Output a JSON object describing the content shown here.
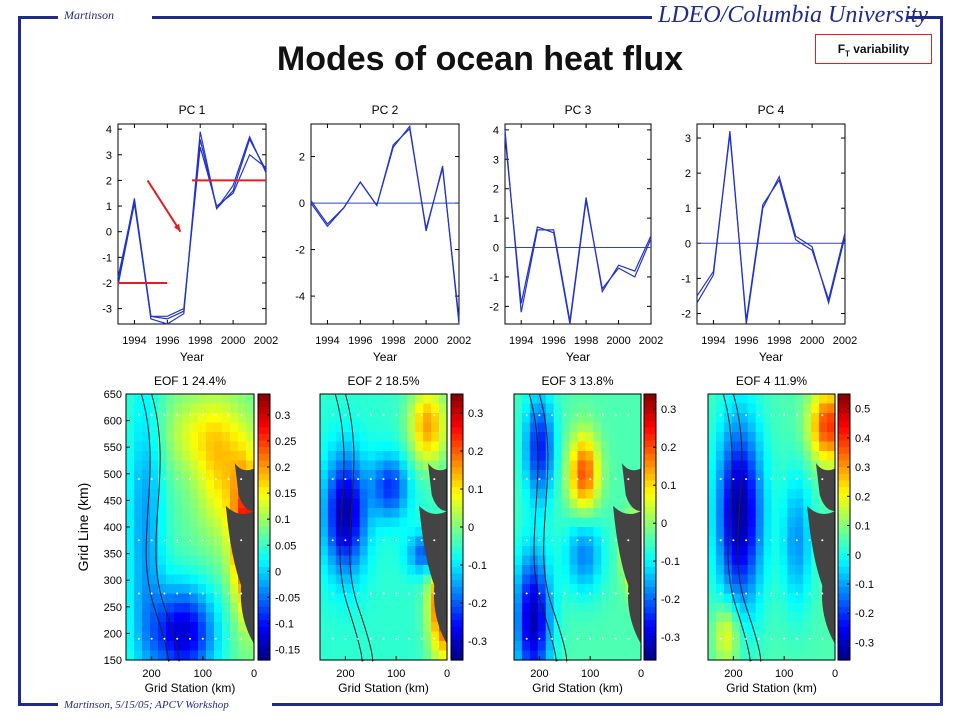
{
  "header": {
    "author": "Martinson",
    "institution": "LDEO/Columbia University",
    "title": "Modes of  ocean heat flux",
    "tag": {
      "text": "F",
      "sub": "T",
      "suffix": " variability"
    }
  },
  "footer": {
    "text": "Martinson, 5/15/05; APCV Workshop"
  },
  "colors": {
    "frame": "#1f2a8a",
    "line": "#2233cc",
    "zero_line": "#3344bb",
    "annotation": "#e02020",
    "land": "#444444"
  },
  "chart_data": [
    {
      "type": "line",
      "title": "PC 1",
      "xlabel": "Year",
      "ylabel": "",
      "x": [
        1993,
        1994,
        1995,
        1996,
        1997,
        1998,
        1999,
        2000,
        2001,
        2002
      ],
      "xticks": [
        "1994",
        "1996",
        "1998",
        "2000",
        "2002"
      ],
      "xtick_values": [
        1994,
        1996,
        1998,
        2000,
        2002
      ],
      "ylim": [
        -3.6,
        4.2
      ],
      "yticks": [
        4,
        3,
        2,
        1,
        0,
        -1,
        -2,
        -3
      ],
      "zero_line": false,
      "series": [
        {
          "values": [
            -2.0,
            1.3,
            -3.3,
            -3.4,
            -3.1,
            3.6,
            0.9,
            1.6,
            3.6,
            2.4
          ]
        },
        {
          "values": [
            -1.8,
            1.2,
            -3.4,
            -3.6,
            -3.2,
            3.9,
            0.9,
            1.8,
            3.7,
            2.3
          ]
        },
        {
          "values": [
            -2.1,
            1.1,
            -3.3,
            -3.3,
            -3.0,
            3.3,
            1.0,
            1.5,
            3.0,
            2.5
          ]
        }
      ],
      "annotations": {
        "lower_level": -2,
        "upper_level": 2,
        "lower_range": [
          1993,
          1996
        ],
        "upper_range": [
          1997.5,
          2002
        ],
        "arrow_from": [
          1994.8,
          2.0
        ],
        "arrow_to": [
          1996.8,
          0.0
        ]
      }
    },
    {
      "type": "line",
      "title": "PC 2",
      "xlabel": "Year",
      "ylabel": "",
      "x": [
        1993,
        1994,
        1995,
        1996,
        1997,
        1998,
        1999,
        2000,
        2001,
        2002
      ],
      "xticks": [
        "1994",
        "1996",
        "1998",
        "2000",
        "2002"
      ],
      "xtick_values": [
        1994,
        1996,
        1998,
        2000,
        2002
      ],
      "ylim": [
        -5.2,
        3.4
      ],
      "yticks": [
        2,
        0,
        -2,
        -4
      ],
      "zero_line": true,
      "series": [
        {
          "values": [
            0.0,
            -1.0,
            -0.2,
            0.9,
            -0.1,
            2.4,
            3.3,
            -1.2,
            1.6,
            -5.2
          ]
        },
        {
          "values": [
            0.1,
            -0.9,
            -0.2,
            0.9,
            -0.1,
            2.5,
            3.2,
            -1.1,
            1.5,
            -5.0
          ]
        }
      ]
    },
    {
      "type": "line",
      "title": "PC 3",
      "xlabel": "Year",
      "ylabel": "",
      "x": [
        1993,
        1994,
        1995,
        1996,
        1997,
        1998,
        1999,
        2000,
        2001,
        2002
      ],
      "xticks": [
        "1994",
        "1996",
        "1998",
        "2000",
        "2002"
      ],
      "xtick_values": [
        1994,
        1996,
        1998,
        2000,
        2002
      ],
      "ylim": [
        -2.6,
        4.2
      ],
      "yticks": [
        4,
        3,
        2,
        1,
        0,
        -1,
        -2
      ],
      "zero_line": true,
      "series": [
        {
          "values": [
            4.0,
            -2.2,
            0.6,
            0.6,
            -2.5,
            1.7,
            -1.5,
            -0.6,
            -0.8,
            0.4
          ]
        },
        {
          "values": [
            3.8,
            -1.9,
            0.7,
            0.5,
            -2.6,
            1.6,
            -1.4,
            -0.7,
            -1.0,
            0.3
          ]
        }
      ]
    },
    {
      "type": "line",
      "title": "PC 4",
      "xlabel": "Year",
      "ylabel": "",
      "x": [
        1993,
        1994,
        1995,
        1996,
        1997,
        1998,
        1999,
        2000,
        2001,
        2002
      ],
      "xticks": [
        "1994",
        "1996",
        "1998",
        "2000",
        "2002"
      ],
      "xtick_values": [
        1994,
        1996,
        1998,
        2000,
        2002
      ],
      "ylim": [
        -2.3,
        3.4
      ],
      "yticks": [
        3,
        2,
        1,
        0,
        -1,
        -2
      ],
      "zero_line": true,
      "series": [
        {
          "values": [
            -1.7,
            -0.9,
            3.2,
            -2.3,
            1.0,
            1.9,
            0.2,
            -0.1,
            -1.7,
            0.2
          ]
        },
        {
          "values": [
            -1.5,
            -0.8,
            3.1,
            -2.2,
            1.1,
            1.8,
            0.1,
            -0.2,
            -1.6,
            0.3
          ]
        }
      ]
    },
    {
      "type": "heatmap",
      "title": "EOF 1 24.4%",
      "xlabel": "Grid Station (km)",
      "ylabel": "Grid Line (km)",
      "xticks": [
        "200",
        "100",
        "0"
      ],
      "xtick_values": [
        200,
        100,
        0
      ],
      "xlim": [
        250,
        0
      ],
      "yticks": [
        "650",
        "600",
        "550",
        "500",
        "450",
        "400",
        "350",
        "300",
        "250",
        "200",
        "150"
      ],
      "ylim": [
        150,
        650
      ],
      "colorbar": {
        "range": [
          -0.17,
          0.34
        ],
        "ticks": [
          "0.3",
          "0.25",
          "0.2",
          "0.15",
          "0.1",
          "0.05",
          "0",
          "-0.05",
          "-0.1",
          "-0.15"
        ],
        "tick_values": [
          0.3,
          0.25,
          0.2,
          0.15,
          0.1,
          0.05,
          0,
          -0.05,
          -0.1,
          -0.15
        ]
      },
      "pattern": "coastal-warm"
    },
    {
      "type": "heatmap",
      "title": "EOF 2 18.5%",
      "xlabel": "Grid Station (km)",
      "ylabel": "",
      "xticks": [
        "200",
        "100",
        "0"
      ],
      "xtick_values": [
        200,
        100,
        0
      ],
      "xlim": [
        250,
        0
      ],
      "yticks": [],
      "ylim": [
        150,
        650
      ],
      "colorbar": {
        "range": [
          -0.35,
          0.35
        ],
        "ticks": [
          "0.3",
          "0.2",
          "0.1",
          "0",
          "-0.1",
          "-0.2",
          "-0.3"
        ],
        "tick_values": [
          0.3,
          0.2,
          0.1,
          0,
          -0.1,
          -0.2,
          -0.3
        ]
      },
      "pattern": "dipole"
    },
    {
      "type": "heatmap",
      "title": "EOF 3 13.8%",
      "xlabel": "Grid Station (km)",
      "ylabel": "",
      "xticks": [
        "200",
        "100",
        "0"
      ],
      "xtick_values": [
        200,
        100,
        0
      ],
      "xlim": [
        250,
        0
      ],
      "yticks": [],
      "ylim": [
        150,
        650
      ],
      "colorbar": {
        "range": [
          -0.36,
          0.34
        ],
        "ticks": [
          "0.3",
          "0.2",
          "0.1",
          "0",
          "-0.1",
          "-0.2",
          "-0.3"
        ],
        "tick_values": [
          0.3,
          0.2,
          0.1,
          0,
          -0.1,
          -0.2,
          -0.3
        ]
      },
      "pattern": "banded"
    },
    {
      "type": "heatmap",
      "title": "EOF 4 11.9%",
      "xlabel": "Grid Station (km)",
      "ylabel": "",
      "xticks": [
        "200",
        "100",
        "0"
      ],
      "xtick_values": [
        200,
        100,
        0
      ],
      "xlim": [
        250,
        0
      ],
      "yticks": [],
      "ylim": [
        150,
        650
      ],
      "colorbar": {
        "range": [
          -0.36,
          0.55
        ],
        "ticks": [
          "0.5",
          "0.4",
          "0.3",
          "0.2",
          "0.1",
          "0",
          "-0.1",
          "-0.2",
          "-0.3"
        ],
        "tick_values": [
          0.5,
          0.4,
          0.3,
          0.2,
          0.1,
          0,
          -0.1,
          -0.2,
          -0.3
        ]
      },
      "pattern": "offshore-cold"
    }
  ]
}
